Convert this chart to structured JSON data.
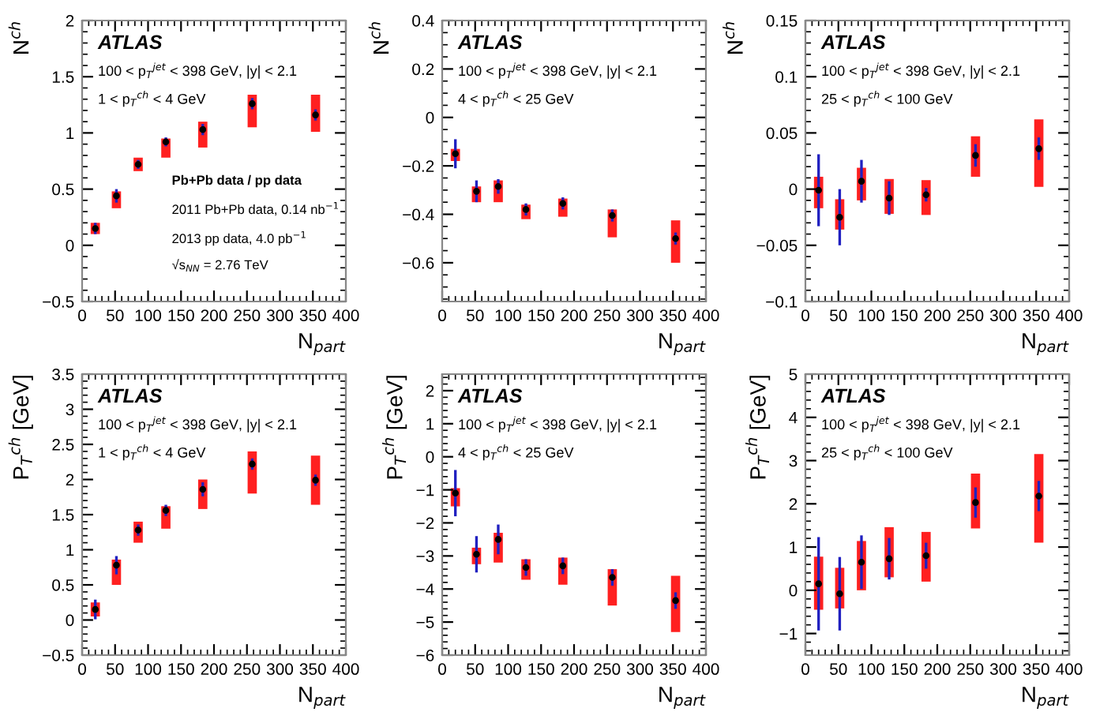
{
  "chart_data": [
    {
      "type": "scatter",
      "xlabel": "N$_{part}$",
      "ylabel": "N$^{ch}$",
      "xlim": [
        0,
        400
      ],
      "xticks": [
        0,
        50,
        100,
        150,
        200,
        250,
        300,
        350,
        400
      ],
      "ylim": [
        -0.5,
        2
      ],
      "yticks": [
        -0.5,
        0,
        0.5,
        1,
        1.5,
        2
      ],
      "grid": false,
      "legend": false,
      "annotations": [
        "ATLAS",
        "100 < p$_{T}$$^{jet}$ < 398 GeV, |y| < 2.1",
        "1 < p$_{T}$$^{ch}$ < 4 GeV",
        "Pb+Pb data / pp data",
        "2011 Pb+Pb data, 0.14 nb$^{−1}$",
        "2013 pp data, 4.0 pb$^{−1}$",
        "√s$_{NN}$ = 2.76 TeV"
      ],
      "series": [
        {
          "type": "bar",
          "color": "#ff2020",
          "x": [
            20,
            52,
            85,
            127,
            183,
            258,
            354
          ],
          "base": [
            0.1,
            0.33,
            0.66,
            0.78,
            0.87,
            1.05,
            1.01
          ],
          "values": [
            0.1,
            0.15,
            0.12,
            0.17,
            0.23,
            0.29,
            0.33
          ]
        },
        {
          "marker": "circle",
          "color": "#000000",
          "x": [
            20,
            52,
            85,
            127,
            183,
            258,
            354
          ],
          "values": [
            0.15,
            0.44,
            0.72,
            0.92,
            1.03,
            1.26,
            1.16
          ],
          "errors": [
            0.05,
            0.06,
            0.04,
            0.04,
            0.05,
            0.05,
            0.05
          ]
        }
      ]
    },
    {
      "type": "scatter",
      "xlabel": "N$_{part}$",
      "ylabel": "N$^{ch}$",
      "xlim": [
        0,
        400
      ],
      "xticks": [
        0,
        50,
        100,
        150,
        200,
        250,
        300,
        350,
        400
      ],
      "ylim": [
        -0.76,
        0.4
      ],
      "yticks": [
        -0.6,
        -0.4,
        -0.2,
        0,
        0.2,
        0.4
      ],
      "grid": false,
      "legend": false,
      "annotations": [
        "ATLAS",
        "100 < p$_{T}$$^{jet}$ < 398 GeV, |y| < 2.1",
        "4 < p$_{T}$$^{ch}$ < 25 GeV"
      ],
      "series": [
        {
          "type": "bar",
          "color": "#ff2020",
          "x": [
            20,
            52,
            85,
            127,
            183,
            258,
            354
          ],
          "base": [
            -0.18,
            -0.35,
            -0.35,
            -0.42,
            -0.41,
            -0.495,
            -0.6
          ],
          "values": [
            0.05,
            0.065,
            0.09,
            0.06,
            0.075,
            0.115,
            0.175
          ]
        },
        {
          "marker": "circle",
          "color": "#000000",
          "x": [
            20,
            52,
            85,
            127,
            183,
            258,
            354
          ],
          "values": [
            -0.15,
            -0.305,
            -0.285,
            -0.38,
            -0.355,
            -0.405,
            -0.5
          ],
          "errors": [
            0.06,
            0.045,
            0.03,
            0.025,
            0.025,
            0.025,
            0.025
          ]
        }
      ]
    },
    {
      "type": "scatter",
      "xlabel": "N$_{part}$",
      "ylabel": "N$^{ch}$",
      "xlim": [
        0,
        400
      ],
      "xticks": [
        0,
        50,
        100,
        150,
        200,
        250,
        300,
        350,
        400
      ],
      "ylim": [
        -0.1,
        0.15
      ],
      "yticks": [
        -0.1,
        -0.05,
        0,
        0.05,
        0.1,
        0.15
      ],
      "grid": false,
      "legend": false,
      "annotations": [
        "ATLAS",
        "100 < p$_{T}$$^{jet}$ < 398 GeV, |y| < 2.1",
        "25 < p$_{T}$$^{ch}$ < 100 GeV"
      ],
      "series": [
        {
          "type": "bar",
          "color": "#ff2020",
          "x": [
            20,
            52,
            85,
            127,
            183,
            258,
            354
          ],
          "base": [
            -0.017,
            -0.036,
            -0.01,
            -0.022,
            -0.023,
            0.011,
            0.002
          ],
          "values": [
            0.028,
            0.027,
            0.029,
            0.031,
            0.031,
            0.036,
            0.06
          ]
        },
        {
          "marker": "circle",
          "color": "#000000",
          "x": [
            20,
            52,
            85,
            127,
            183,
            258,
            354
          ],
          "values": [
            -0.001,
            -0.025,
            0.007,
            -0.008,
            -0.005,
            0.03,
            0.036
          ],
          "errors": [
            0.032,
            0.025,
            0.019,
            0.015,
            0.006,
            0.01,
            0.01
          ]
        }
      ]
    },
    {
      "type": "scatter",
      "xlabel": "N$_{part}$",
      "ylabel": "P$_{T}$$^{ch}$ [GeV]",
      "xlim": [
        0,
        400
      ],
      "xticks": [
        0,
        50,
        100,
        150,
        200,
        250,
        300,
        350,
        400
      ],
      "ylim": [
        -0.5,
        3.5
      ],
      "yticks": [
        -0.5,
        0,
        0.5,
        1,
        1.5,
        2,
        2.5,
        3,
        3.5
      ],
      "grid": false,
      "legend": false,
      "annotations": [
        "ATLAS",
        "100 < p$_{T}$$^{jet}$ < 398 GeV, |y| < 2.1",
        "1 < p$_{T}$$^{ch}$ < 4 GeV"
      ],
      "series": [
        {
          "type": "bar",
          "color": "#ff2020",
          "x": [
            20,
            52,
            85,
            127,
            183,
            258,
            354
          ],
          "base": [
            0.05,
            0.5,
            1.1,
            1.3,
            1.58,
            1.8,
            1.64
          ],
          "values": [
            0.2,
            0.36,
            0.3,
            0.32,
            0.42,
            0.6,
            0.7
          ]
        },
        {
          "marker": "circle",
          "color": "#000000",
          "x": [
            20,
            52,
            85,
            127,
            183,
            258,
            354
          ],
          "values": [
            0.15,
            0.78,
            1.28,
            1.56,
            1.86,
            2.22,
            1.99
          ],
          "errors": [
            0.14,
            0.13,
            0.08,
            0.08,
            0.1,
            0.08,
            0.08
          ]
        }
      ]
    },
    {
      "type": "scatter",
      "xlabel": "N$_{part}$",
      "ylabel": "P$_{T}$$^{ch}$ [GeV]",
      "xlim": [
        0,
        400
      ],
      "xticks": [
        0,
        50,
        100,
        150,
        200,
        250,
        300,
        350,
        400
      ],
      "ylim": [
        -6,
        2.5
      ],
      "yticks": [
        -6,
        -5,
        -4,
        -3,
        -2,
        -1,
        0,
        1,
        2
      ],
      "grid": false,
      "legend": false,
      "annotations": [
        "ATLAS",
        "100 < p$_{T}$$^{jet}$ < 398 GeV, |y| < 2.1",
        "4 < p$_{T}$$^{ch}$ < 25 GeV"
      ],
      "series": [
        {
          "type": "bar",
          "color": "#ff2020",
          "x": [
            20,
            52,
            85,
            127,
            183,
            258,
            354
          ],
          "base": [
            -1.5,
            -3.25,
            -3.2,
            -3.72,
            -3.87,
            -4.5,
            -5.3
          ],
          "values": [
            0.55,
            0.5,
            0.9,
            0.62,
            0.82,
            1.1,
            1.7
          ]
        },
        {
          "marker": "circle",
          "color": "#000000",
          "x": [
            20,
            52,
            85,
            127,
            183,
            258,
            354
          ],
          "values": [
            -1.1,
            -2.95,
            -2.5,
            -3.35,
            -3.3,
            -3.65,
            -4.35
          ],
          "errors": [
            0.7,
            0.55,
            0.45,
            0.25,
            0.25,
            0.25,
            0.25
          ]
        }
      ]
    },
    {
      "type": "scatter",
      "xlabel": "N$_{part}$",
      "ylabel": "P$_{T}$$^{ch}$ [GeV]",
      "xlim": [
        0,
        400
      ],
      "xticks": [
        0,
        50,
        100,
        150,
        200,
        250,
        300,
        350,
        400
      ],
      "ylim": [
        -1.5,
        5
      ],
      "yticks": [
        -1,
        0,
        1,
        2,
        3,
        4,
        5
      ],
      "grid": false,
      "legend": false,
      "annotations": [
        "ATLAS",
        "100 < p$_{T}$$^{jet}$ < 398 GeV, |y| < 2.1",
        "25 < p$_{T}$$^{ch}$ < 100 GeV"
      ],
      "series": [
        {
          "type": "bar",
          "color": "#ff2020",
          "x": [
            20,
            52,
            85,
            127,
            183,
            258,
            354
          ],
          "base": [
            -0.45,
            -0.42,
            0.0,
            0.3,
            0.2,
            1.43,
            1.1
          ],
          "values": [
            1.23,
            0.94,
            1.14,
            1.16,
            1.15,
            1.27,
            2.05
          ]
        },
        {
          "marker": "circle",
          "color": "#000000",
          "x": [
            20,
            52,
            85,
            127,
            183,
            258,
            354
          ],
          "values": [
            0.15,
            -0.08,
            0.65,
            0.73,
            0.8,
            2.03,
            2.18
          ],
          "errors": [
            1.08,
            0.85,
            0.62,
            0.48,
            0.3,
            0.35,
            0.35
          ]
        }
      ]
    }
  ]
}
